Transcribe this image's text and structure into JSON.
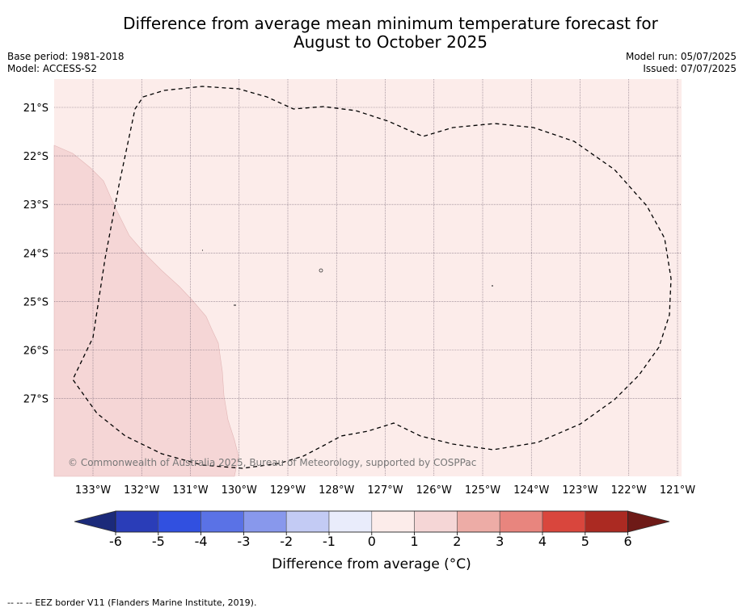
{
  "title_line1": "Difference from average mean minimum temperature forecast for",
  "title_line2": "August to October 2025",
  "base_period": "Base period: 1981-2018",
  "model": "Model: ACCESS-S2",
  "model_run": "Model run: 05/07/2025",
  "issued": "Issued: 07/07/2025",
  "copyright": "© Commonwealth of Australia 2025, Bureau of Meteorology, supported by COSPPac",
  "lat_labels": [
    "21°S",
    "22°S",
    "23°S",
    "24°S",
    "25°S",
    "26°S",
    "27°S"
  ],
  "lon_labels": [
    "133°W",
    "132°W",
    "131°W",
    "130°W",
    "129°W",
    "128°W",
    "127°W",
    "126°W",
    "125°W",
    "124°W",
    "123°W",
    "122°W",
    "121°W"
  ],
  "colorbar": {
    "ticks": [
      "-6",
      "-5",
      "-4",
      "-3",
      "-2",
      "-1",
      "0",
      "1",
      "2",
      "3",
      "4",
      "5",
      "6"
    ],
    "colors": [
      "#1b2a7a",
      "#2a3db8",
      "#3150e0",
      "#5a72e6",
      "#8898ec",
      "#c3cbf4",
      "#e9ecfb",
      "#fcecea",
      "#f5d6d6",
      "#edaca6",
      "#e8857e",
      "#d9463d",
      "#ab2a22",
      "#6e1a17"
    ],
    "label": "Difference from average (°C)"
  },
  "legend": {
    "line_sample": "--  --  --",
    "text": "EEZ border V11 (Flanders Marine Institute, 2019)."
  },
  "field_colors": {
    "open_area": "#fcecea",
    "warmer_area": "#f5d6d6"
  }
}
